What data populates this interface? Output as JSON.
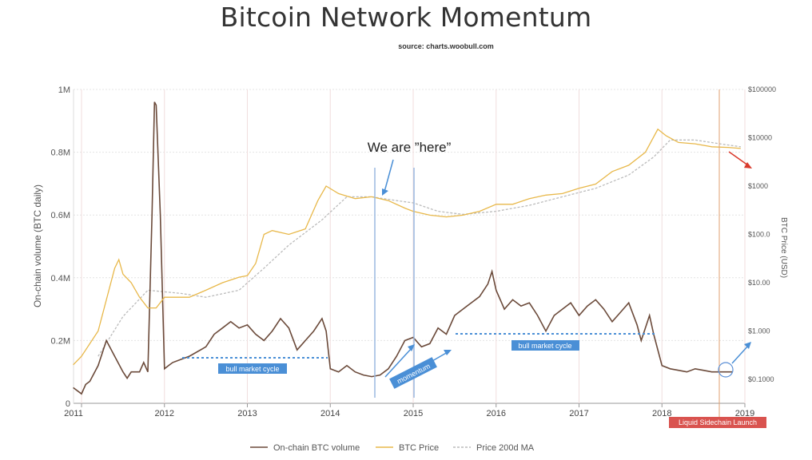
{
  "header": {
    "title": "Bitcoin Network Momentum",
    "subtitle": "source: charts.woobull.com"
  },
  "chart_data": {
    "type": "line",
    "title": "Bitcoin Network Momentum",
    "subtitle": "source: charts.woobull.com",
    "xlabel": "",
    "ylabel_left": "On-chain volume (BTC daily)",
    "ylabel_right": "BTC Price (USD)",
    "x_ticks": [
      "2011",
      "2012",
      "2013",
      "2014",
      "2015",
      "2016",
      "2017",
      "2018",
      "2019"
    ],
    "y_left_ticks": [
      "0",
      "0.2M",
      "0.4M",
      "0.6M",
      "0.8M",
      "1M"
    ],
    "y_left_range": [
      0,
      1000000
    ],
    "y_right_ticks": [
      "$0.1000",
      "$1.000",
      "$10.00",
      "$100.0",
      "$1000",
      "$10000",
      "$100000"
    ],
    "y_right_range": [
      0.1,
      100000
    ],
    "y_right_scale": "log",
    "grid": true,
    "legend_position": "bottom",
    "series": [
      {
        "name": "On-chain BTC volume",
        "axis": "left",
        "color": "#6b4a3a",
        "x": [
          2010.9,
          2011.0,
          2011.05,
          2011.1,
          2011.2,
          2011.3,
          2011.4,
          2011.5,
          2011.55,
          2011.6,
          2011.7,
          2011.75,
          2011.8,
          2011.85,
          2011.88,
          2011.9,
          2011.95,
          2012.0,
          2012.05,
          2012.1,
          2012.2,
          2012.3,
          2012.5,
          2012.6,
          2012.7,
          2012.8,
          2012.9,
          2013.0,
          2013.1,
          2013.2,
          2013.3,
          2013.4,
          2013.5,
          2013.6,
          2013.7,
          2013.8,
          2013.9,
          2013.95,
          2014.0,
          2014.1,
          2014.2,
          2014.3,
          2014.4,
          2014.5,
          2014.6,
          2014.7,
          2014.8,
          2014.9,
          2015.0,
          2015.1,
          2015.2,
          2015.3,
          2015.4,
          2015.5,
          2015.6,
          2015.7,
          2015.8,
          2015.9,
          2015.95,
          2016.0,
          2016.1,
          2016.2,
          2016.3,
          2016.4,
          2016.5,
          2016.6,
          2016.7,
          2016.8,
          2016.9,
          2017.0,
          2017.1,
          2017.2,
          2017.3,
          2017.4,
          2017.5,
          2017.6,
          2017.7,
          2017.75,
          2017.8,
          2017.85,
          2017.9,
          2018.0,
          2018.1,
          2018.2,
          2018.3,
          2018.4,
          2018.5,
          2018.6,
          2018.7,
          2018.8,
          2018.85
        ],
        "values": [
          50000,
          30000,
          60000,
          70000,
          120000,
          200000,
          150000,
          100000,
          80000,
          100000,
          100000,
          130000,
          100000,
          600000,
          960000,
          950000,
          600000,
          110000,
          120000,
          130000,
          140000,
          150000,
          180000,
          220000,
          240000,
          260000,
          240000,
          250000,
          220000,
          200000,
          230000,
          270000,
          240000,
          170000,
          200000,
          230000,
          270000,
          230000,
          110000,
          100000,
          120000,
          100000,
          90000,
          85000,
          90000,
          110000,
          150000,
          200000,
          210000,
          180000,
          190000,
          240000,
          220000,
          280000,
          300000,
          320000,
          340000,
          380000,
          420000,
          360000,
          300000,
          330000,
          310000,
          320000,
          280000,
          230000,
          280000,
          300000,
          320000,
          280000,
          310000,
          330000,
          300000,
          260000,
          290000,
          320000,
          250000,
          200000,
          240000,
          280000,
          220000,
          120000,
          110000,
          105000,
          100000,
          110000,
          105000,
          100000,
          100000,
          100000,
          100000
        ]
      },
      {
        "name": "BTC Price",
        "axis": "right",
        "color": "#e8b84a",
        "x": [
          2010.9,
          2011.0,
          2011.2,
          2011.4,
          2011.45,
          2011.5,
          2011.6,
          2011.7,
          2011.8,
          2011.9,
          2012.0,
          2012.1,
          2012.3,
          2012.5,
          2012.7,
          2012.9,
          2013.0,
          2013.1,
          2013.2,
          2013.3,
          2013.5,
          2013.7,
          2013.85,
          2013.95,
          2014.1,
          2014.3,
          2014.5,
          2014.7,
          2014.9,
          2015.0,
          2015.2,
          2015.4,
          2015.6,
          2015.8,
          2016.0,
          2016.2,
          2016.4,
          2016.6,
          2016.8,
          2017.0,
          2017.2,
          2017.4,
          2017.6,
          2017.8,
          2017.95,
          2018.05,
          2018.2,
          2018.4,
          2018.6,
          2018.8,
          2018.95
        ],
        "values": [
          0.2,
          0.3,
          1.0,
          20,
          30,
          15,
          10,
          5,
          3,
          3,
          5,
          5,
          5,
          7,
          10,
          13,
          14,
          25,
          100,
          120,
          100,
          130,
          500,
          1000,
          700,
          550,
          600,
          500,
          350,
          300,
          250,
          230,
          250,
          300,
          420,
          420,
          550,
          650,
          700,
          900,
          1100,
          2000,
          2700,
          5000,
          15000,
          11000,
          8000,
          7500,
          6500,
          6300,
          6000
        ]
      },
      {
        "name": "Price 200d MA",
        "axis": "right",
        "color": "#bbbbbb",
        "x": [
          2011.2,
          2011.5,
          2011.8,
          2012.2,
          2012.5,
          2012.9,
          2013.2,
          2013.5,
          2013.9,
          2014.2,
          2014.5,
          2014.8,
          2015.0,
          2015.3,
          2015.6,
          2016.0,
          2016.4,
          2016.8,
          2017.2,
          2017.6,
          2017.9,
          2018.1,
          2018.4,
          2018.7,
          2018.95
        ],
        "values": [
          0.3,
          2,
          7,
          6,
          5,
          7,
          20,
          60,
          200,
          600,
          600,
          500,
          450,
          300,
          260,
          300,
          400,
          600,
          900,
          1700,
          4000,
          9000,
          9000,
          7500,
          6500
        ]
      }
    ],
    "annotations": [
      {
        "text": "We are ”here”"
      },
      {
        "text": "bull market cycle"
      },
      {
        "text": "momentum"
      },
      {
        "text": "bull market cycle"
      },
      {
        "text": "Liquid Sidechain Launch"
      }
    ]
  },
  "colors": {
    "volume": "#6b4a3a",
    "price": "#e8b84a",
    "ma": "#bbbbbb",
    "annotation_blue": "#4a8fd6",
    "label_red": "#d9534f",
    "arrow_red": "#d9392b"
  }
}
